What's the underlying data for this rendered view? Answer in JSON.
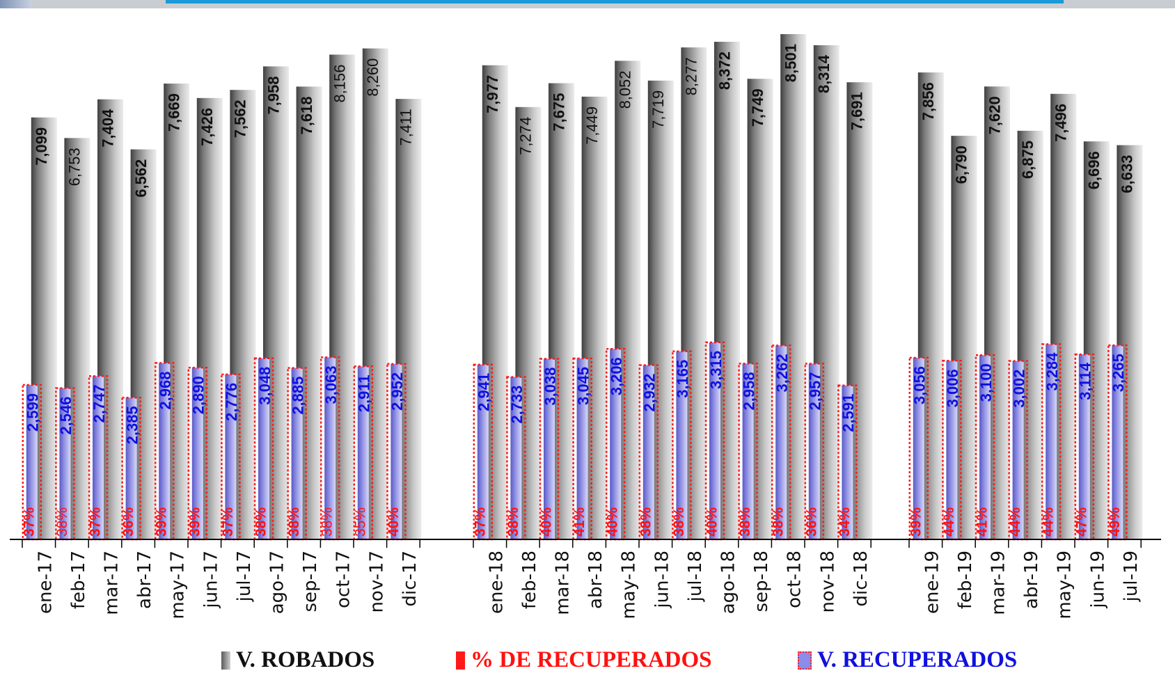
{
  "chart_data": {
    "type": "bar",
    "categories": [
      "ene-17",
      "feb-17",
      "mar-17",
      "abr-17",
      "may-17",
      "jun-17",
      "jul-17",
      "ago-17",
      "sep-17",
      "oct-17",
      "nov-17",
      "dic-17",
      "ene-18",
      "feb-18",
      "mar-18",
      "abr-18",
      "may-18",
      "jun-18",
      "jul-18",
      "ago-18",
      "sep-18",
      "oct-18",
      "nov-18",
      "dic-18",
      "ene-19",
      "feb-19",
      "mar-19",
      "abr-19",
      "may-19",
      "jun-19",
      "jul-19"
    ],
    "series": [
      {
        "name": "V. ROBADOS",
        "values": [
          7099,
          6753,
          7404,
          6562,
          7669,
          7426,
          7562,
          7958,
          7618,
          8156,
          8260,
          7411,
          7977,
          7274,
          7675,
          7449,
          8052,
          7719,
          8277,
          8372,
          7749,
          8501,
          8314,
          7691,
          7856,
          6790,
          7620,
          6875,
          7496,
          6696,
          6633
        ],
        "labels": [
          "7,099",
          "6,753",
          "7,404",
          "6,562",
          "7,669",
          "7,426",
          "7,562",
          "7,958",
          "7,618",
          "8,156",
          "8,260",
          "7,411",
          "7,977",
          "7,274",
          "7,675",
          "7,449",
          "8,052",
          "7,719",
          "8,277",
          "8,372",
          "7,749",
          "8,501",
          "8,314",
          "7,691",
          "7,856",
          "6,790",
          "7,620",
          "6,875",
          "7,496",
          "6,696",
          "6,633"
        ]
      },
      {
        "name": "V. RECUPERADOS",
        "values": [
          2599,
          2546,
          2747,
          2385,
          2968,
          2890,
          2776,
          3048,
          2885,
          3063,
          2911,
          2952,
          2941,
          2733,
          3038,
          3045,
          3206,
          2932,
          3165,
          3315,
          2958,
          3262,
          2957,
          2591,
          3056,
          3006,
          3100,
          3002,
          3284,
          3114,
          3265
        ],
        "labels": [
          "2,599",
          "2,546",
          "2,747",
          "2,385",
          "2,968",
          "2,890",
          "2,776",
          "3,048",
          "2,885",
          "3,063",
          "2,911",
          "2,952",
          "2,941",
          "2,733",
          "3,038",
          "3,045",
          "3,206",
          "2,932",
          "3,165",
          "3,315",
          "2,958",
          "3,262",
          "2,957",
          "2,591",
          "3,056",
          "3,006",
          "3,100",
          "3,002",
          "3,284",
          "3,114",
          "3,265"
        ]
      },
      {
        "name": "% DE RECUPERADOS",
        "labels": [
          "37%",
          "38%",
          "37%",
          "36%",
          "39%",
          "39%",
          "37%",
          "38%",
          "38%",
          "38%",
          "35%",
          "40%",
          "37%",
          "38%",
          "40%",
          "41%",
          "40%",
          "38%",
          "38%",
          "40%",
          "38%",
          "38%",
          "36%",
          "34%",
          "39%",
          "44%",
          "41%",
          "44%",
          "44%",
          "47%",
          "49%"
        ]
      }
    ],
    "ylim": [
      0,
      9000
    ],
    "xlabel": "",
    "ylabel": "",
    "title": "",
    "legend": "bottom",
    "grid": false
  },
  "legend": {
    "robados": "V. ROBADOS",
    "pct": "% DE RECUPERADOS",
    "recuperados": "V. RECUPERADOS"
  },
  "colors": {
    "robados_dark": "#5c5c5c",
    "robados_light": "#e6e6e6",
    "recuperados_label": "#1010e0",
    "pct_label": "#ff1010",
    "recuperados_fill": "#8c8ce8",
    "pct_border": "#ff1a1a"
  }
}
